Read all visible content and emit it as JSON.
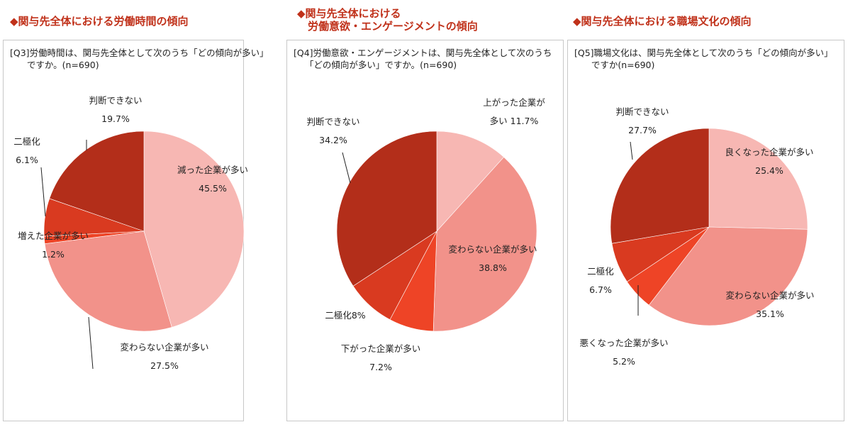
{
  "colors": {
    "title": "#C0311A",
    "slices": [
      "#F7B7B3",
      "#F2928A",
      "#EE4426",
      "#D93A20",
      "#B32E1A"
    ]
  },
  "chart_data": [
    {
      "type": "pie",
      "title": "◆関与先全体における労働時間の傾向",
      "question": "[Q3]労働時間は、関与先全体として次のうち「どの傾向が多い」\n      ですか。(n=690)",
      "slices": [
        {
          "label": "減った企業が多い",
          "value": 45.5,
          "value_label": "45.5%"
        },
        {
          "label": "変わらない企業が多い",
          "value": 27.5,
          "value_label": "27.5%"
        },
        {
          "label": "増えた企業が多い",
          "value": 1.2,
          "value_label": "1.2%"
        },
        {
          "label": "二極化",
          "value": 6.1,
          "value_label": "6.1%"
        },
        {
          "label": "判断できない",
          "value": 19.7,
          "value_label": "19.7%"
        }
      ]
    },
    {
      "type": "pie",
      "title": "◆関与先全体における\n　労働意欲・エンゲージメントの傾向",
      "question": "[Q4]労働意欲・エンゲージメントは、関与先全体として次のうち\n    「どの傾向が多い」ですか。(n=690)",
      "slices": [
        {
          "label": "上がった企業が多い",
          "value": 11.7,
          "value_label": "11.7%"
        },
        {
          "label": "変わらない企業が多い",
          "value": 38.8,
          "value_label": "38.8%"
        },
        {
          "label": "下がった企業が多い",
          "value": 7.2,
          "value_label": "7.2%"
        },
        {
          "label": "二極化",
          "value": 8,
          "value_label": "8%"
        },
        {
          "label": "判断できない",
          "value": 34.2,
          "value_label": "34.2%"
        }
      ]
    },
    {
      "type": "pie",
      "title": "◆関与先全体における職場文化の傾向",
      "question": "[Q5]職場文化は、関与先全体として次のうち「どの傾向が多い」\n      ですか(n=690)",
      "slices": [
        {
          "label": "良くなった企業が多い",
          "value": 25.4,
          "value_label": "25.4%"
        },
        {
          "label": "変わらない企業が多い",
          "value": 35.1,
          "value_label": "35.1%"
        },
        {
          "label": "悪くなった企業が多い",
          "value": 5.2,
          "value_label": "5.2%"
        },
        {
          "label": "二極化",
          "value": 6.7,
          "value_label": "6.7%"
        },
        {
          "label": "判断できない",
          "value": 27.7,
          "value_label": "27.7%"
        }
      ]
    }
  ]
}
